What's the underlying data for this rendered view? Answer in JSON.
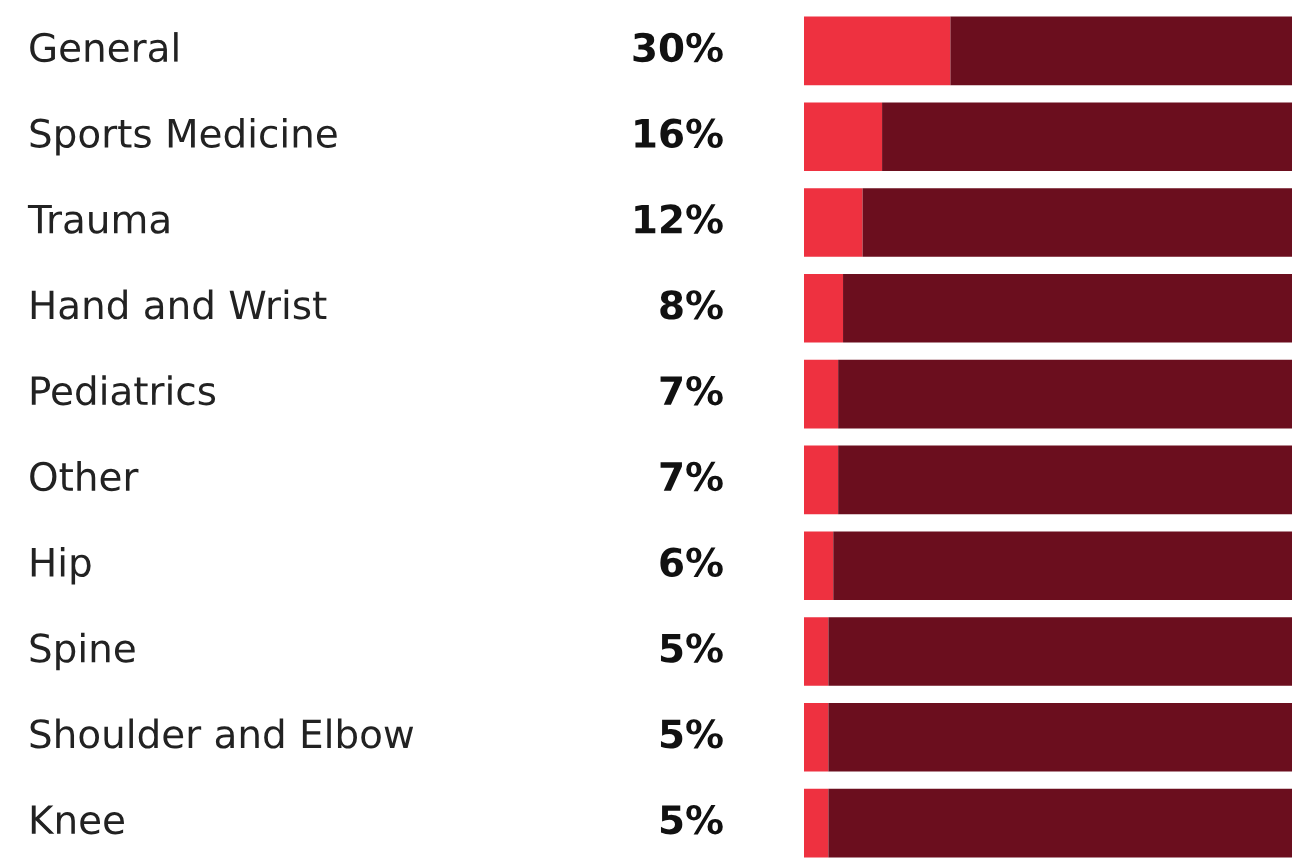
{
  "chart_data": {
    "type": "bar",
    "orientation": "horizontal",
    "stacked": true,
    "categories": [
      "General",
      "Sports Medicine",
      "Trauma",
      "Hand and Wrist",
      "Pediatrics",
      "Other",
      "Hip",
      "Spine",
      "Shoulder and Elbow",
      "Knee"
    ],
    "series": [
      {
        "color": "#ee3140",
        "values": [
          30,
          16,
          12,
          8,
          7,
          7,
          6,
          5,
          5,
          5
        ],
        "value_labels": [
          "30%",
          "16%",
          "12%",
          "8%",
          "7%",
          "7%",
          "6%",
          "5%",
          "5%",
          "5%"
        ]
      },
      {
        "color": "#6b0e1e",
        "values": [
          70,
          84,
          88,
          92,
          93,
          93,
          94,
          95,
          95,
          95
        ]
      }
    ],
    "xlim": [
      0,
      100
    ]
  }
}
